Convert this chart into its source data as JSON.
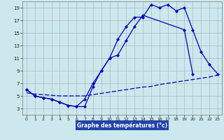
{
  "title": "Graphe des températures (°c)",
  "bg_color": "#cce8ec",
  "grid_color": "#aab8cc",
  "line_color": "#0000bb",
  "xlabel_bg": "#2244aa",
  "xlabel_color": "#ffffff",
  "xlim_min": 0,
  "xlim_max": 23,
  "ylim_min": 2,
  "ylim_max": 20,
  "xticks": [
    0,
    1,
    2,
    3,
    4,
    5,
    6,
    7,
    8,
    9,
    10,
    11,
    12,
    13,
    14,
    15,
    16,
    17,
    18,
    19,
    20,
    21,
    22,
    23
  ],
  "yticks": [
    3,
    5,
    7,
    9,
    11,
    13,
    15,
    17,
    19
  ],
  "line1_x": [
    0,
    1,
    2,
    3,
    4,
    5,
    6,
    7,
    8,
    9,
    10,
    11,
    12,
    13,
    14,
    15,
    16,
    17,
    18,
    19,
    20,
    21,
    22,
    23
  ],
  "line1_y": [
    6.0,
    5.0,
    4.7,
    4.5,
    4.0,
    3.5,
    3.3,
    4.5,
    7.0,
    9.0,
    11.0,
    14.0,
    16.0,
    17.5,
    17.5,
    19.5,
    19.0,
    19.5,
    18.5,
    19.0,
    15.5,
    12.0,
    10.0,
    8.5
  ],
  "line2_x": [
    0,
    1,
    2,
    3,
    4,
    5,
    6,
    7,
    8,
    9,
    10,
    11,
    12,
    13,
    14,
    19,
    20
  ],
  "line2_y": [
    6.0,
    5.0,
    4.7,
    4.5,
    4.0,
    3.5,
    3.3,
    3.3,
    6.5,
    9.0,
    11.0,
    11.5,
    13.8,
    16.0,
    17.8,
    15.5,
    8.5
  ],
  "line3_x": [
    0,
    1,
    2,
    3,
    4,
    5,
    6,
    7,
    8,
    9,
    10,
    11,
    12,
    13,
    14,
    15,
    16,
    17,
    18,
    19,
    20,
    21,
    22,
    23
  ],
  "line3_y": [
    5.5,
    5.3,
    5.2,
    5.1,
    5.0,
    5.0,
    5.0,
    5.0,
    5.2,
    5.4,
    5.6,
    5.8,
    6.0,
    6.2,
    6.4,
    6.5,
    6.8,
    7.0,
    7.2,
    7.4,
    7.6,
    7.8,
    8.0,
    8.3
  ]
}
